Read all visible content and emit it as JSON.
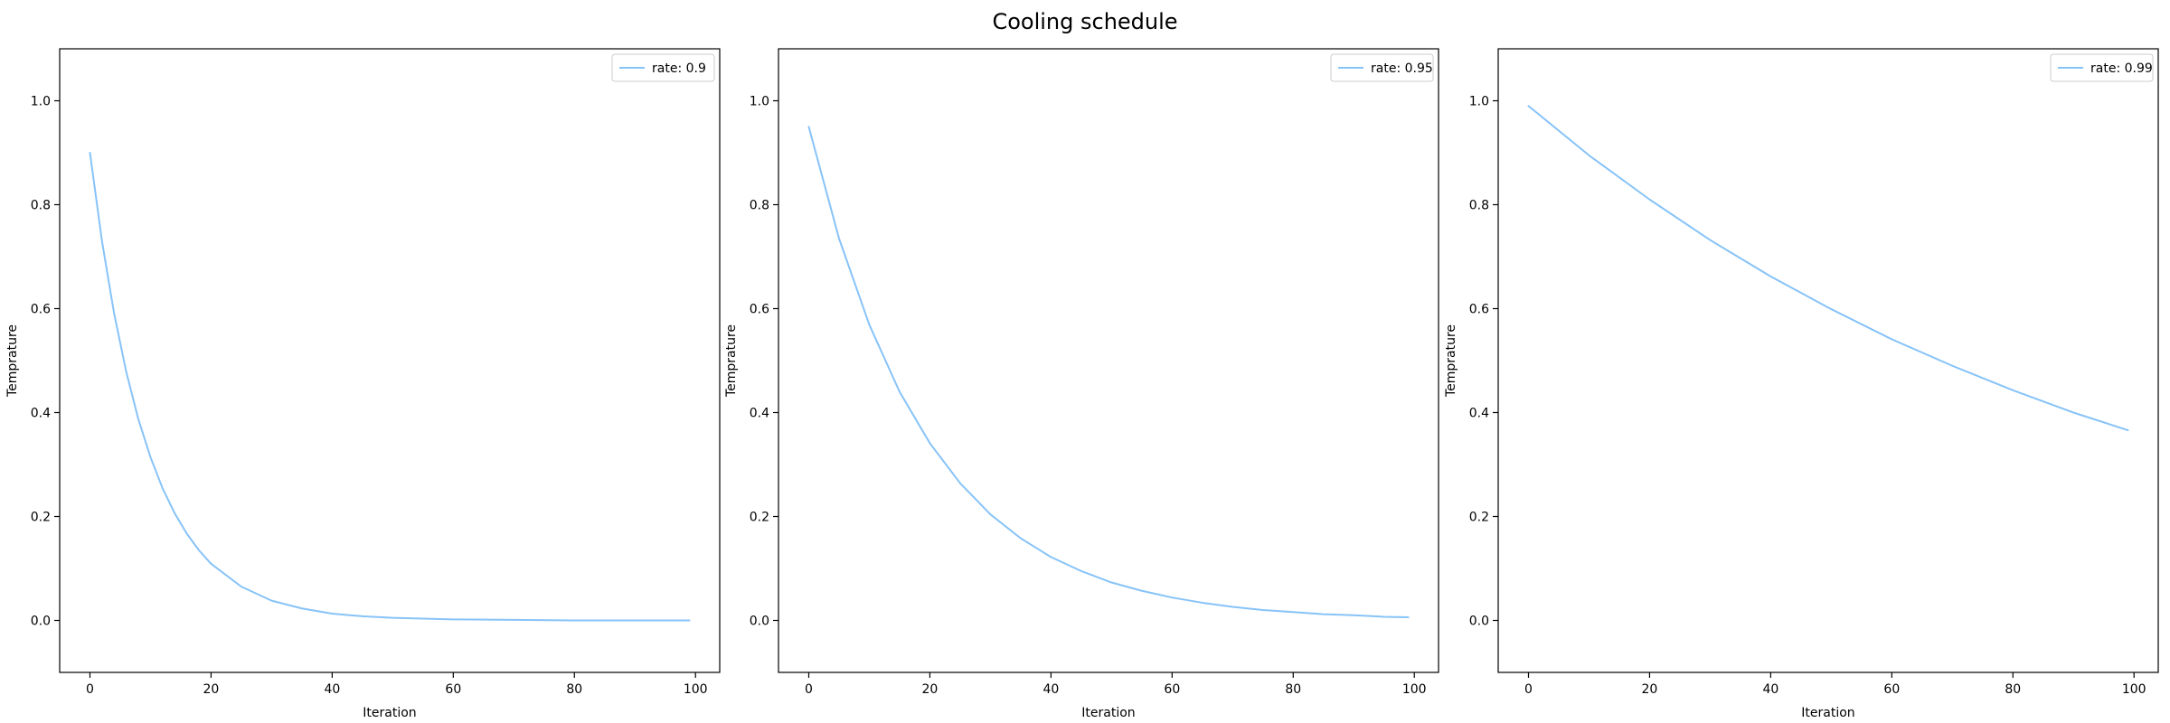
{
  "figure": {
    "title": "Cooling schedule"
  },
  "chart_data": [
    {
      "type": "line",
      "title": "",
      "xlabel": "Iteration",
      "ylabel": "Temprature",
      "xlim": [
        -5,
        104
      ],
      "ylim": [
        -0.1,
        1.1
      ],
      "xticks": [
        0,
        20,
        40,
        60,
        80,
        100
      ],
      "yticks": [
        0.0,
        0.2,
        0.4,
        0.6,
        0.8,
        1.0
      ],
      "xtick_labels": [
        "0",
        "20",
        "40",
        "60",
        "80",
        "100"
      ],
      "ytick_labels": [
        "0.0",
        "0.2",
        "0.4",
        "0.6",
        "0.8",
        "1.0"
      ],
      "grid": false,
      "legend": "top-right",
      "series": [
        {
          "name": "rate: 0.9",
          "color": "#87c3f8",
          "x": [
            0,
            2,
            4,
            6,
            8,
            10,
            12,
            14,
            16,
            18,
            20,
            25,
            30,
            35,
            40,
            45,
            50,
            60,
            70,
            80,
            90,
            99
          ],
          "y": [
            0.9,
            0.729,
            0.59,
            0.478,
            0.387,
            0.314,
            0.254,
            0.206,
            0.167,
            0.135,
            0.109,
            0.065,
            0.038,
            0.023,
            0.013,
            0.008,
            0.005,
            0.002,
            0.001,
            0.0,
            0.0,
            0.0
          ]
        }
      ]
    },
    {
      "type": "line",
      "title": "",
      "xlabel": "Iteration",
      "ylabel": "Temprature",
      "xlim": [
        -5,
        104
      ],
      "ylim": [
        -0.1,
        1.1
      ],
      "xticks": [
        0,
        20,
        40,
        60,
        80,
        100
      ],
      "yticks": [
        0.0,
        0.2,
        0.4,
        0.6,
        0.8,
        1.0
      ],
      "xtick_labels": [
        "0",
        "20",
        "40",
        "60",
        "80",
        "100"
      ],
      "ytick_labels": [
        "0.0",
        "0.2",
        "0.4",
        "0.6",
        "0.8",
        "1.0"
      ],
      "grid": false,
      "legend": "top-right",
      "series": [
        {
          "name": "rate: 0.95",
          "color": "#87c3f8",
          "x": [
            0,
            5,
            10,
            15,
            20,
            25,
            30,
            35,
            40,
            45,
            50,
            55,
            60,
            65,
            70,
            75,
            80,
            85,
            90,
            95,
            99
          ],
          "y": [
            0.95,
            0.735,
            0.569,
            0.44,
            0.341,
            0.264,
            0.204,
            0.158,
            0.122,
            0.095,
            0.073,
            0.057,
            0.044,
            0.034,
            0.026,
            0.02,
            0.016,
            0.012,
            0.01,
            0.007,
            0.006
          ]
        }
      ]
    },
    {
      "type": "line",
      "title": "",
      "xlabel": "Iteration",
      "ylabel": "Temprature",
      "xlim": [
        -5,
        104
      ],
      "ylim": [
        -0.1,
        1.1
      ],
      "xticks": [
        0,
        20,
        40,
        60,
        80,
        100
      ],
      "yticks": [
        0.0,
        0.2,
        0.4,
        0.6,
        0.8,
        1.0
      ],
      "xtick_labels": [
        "0",
        "20",
        "40",
        "60",
        "80",
        "100"
      ],
      "ytick_labels": [
        "0.0",
        "0.2",
        "0.4",
        "0.6",
        "0.8",
        "1.0"
      ],
      "grid": false,
      "legend": "top-right",
      "series": [
        {
          "name": "rate: 0.99",
          "color": "#87c3f8",
          "x": [
            0,
            10,
            20,
            30,
            40,
            50,
            60,
            70,
            80,
            90,
            99
          ],
          "y": [
            0.99,
            0.895,
            0.81,
            0.732,
            0.662,
            0.599,
            0.541,
            0.49,
            0.443,
            0.4,
            0.366
          ]
        }
      ]
    }
  ]
}
